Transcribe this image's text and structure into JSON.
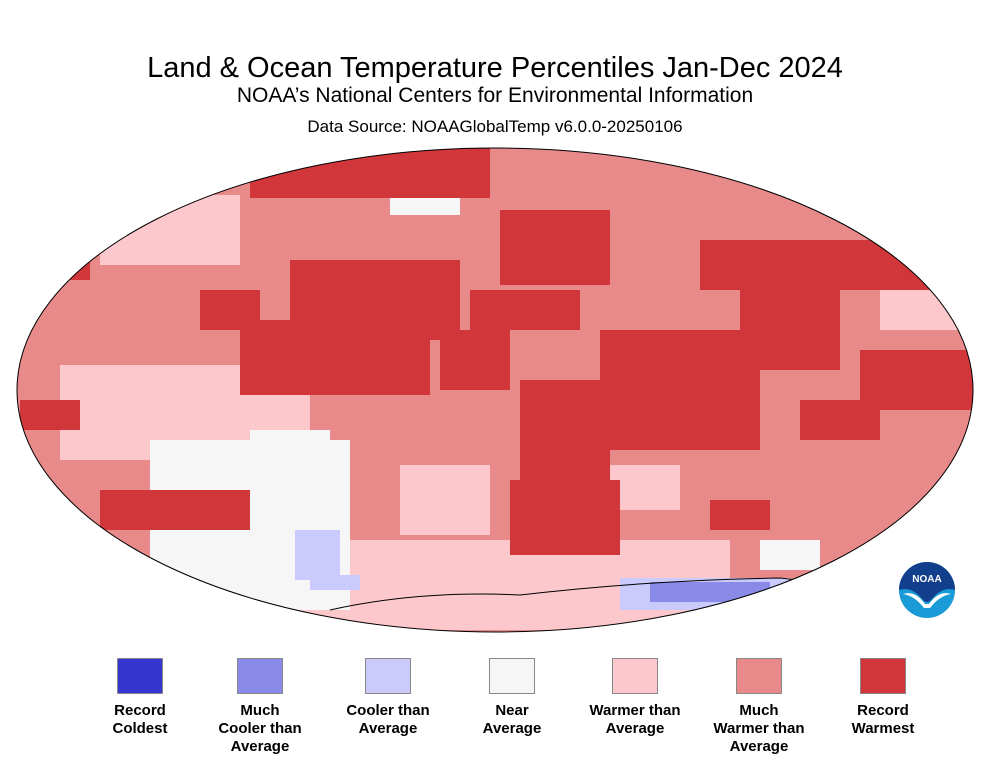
{
  "title": "Land & Ocean Temperature Percentiles Jan-Dec 2024",
  "subtitle": "NOAA’s National Centers for Environmental Information",
  "source": "Data Source: NOAAGlobalTemp v6.0.0-20250106",
  "logo_text": "NOAA",
  "legend": [
    {
      "line1": "Record",
      "line2": "Coldest",
      "line3": "",
      "color": "#3535d0"
    },
    {
      "line1": "Much",
      "line2": "Cooler than",
      "line3": "Average",
      "color": "#8a8ae8"
    },
    {
      "line1": "Cooler than",
      "line2": "Average",
      "line3": "",
      "color": "#cacafc"
    },
    {
      "line1": "Near",
      "line2": "Average",
      "line3": "",
      "color": "#f6f6f6"
    },
    {
      "line1": "Warmer than",
      "line2": "Average",
      "line3": "",
      "color": "#fcc8cc"
    },
    {
      "line1": "Much",
      "line2": "Warmer than",
      "line3": "Average",
      "color": "#e88a8a"
    },
    {
      "line1": "Record",
      "line2": "Warmest",
      "line3": "",
      "color": "#d0363a"
    }
  ]
}
